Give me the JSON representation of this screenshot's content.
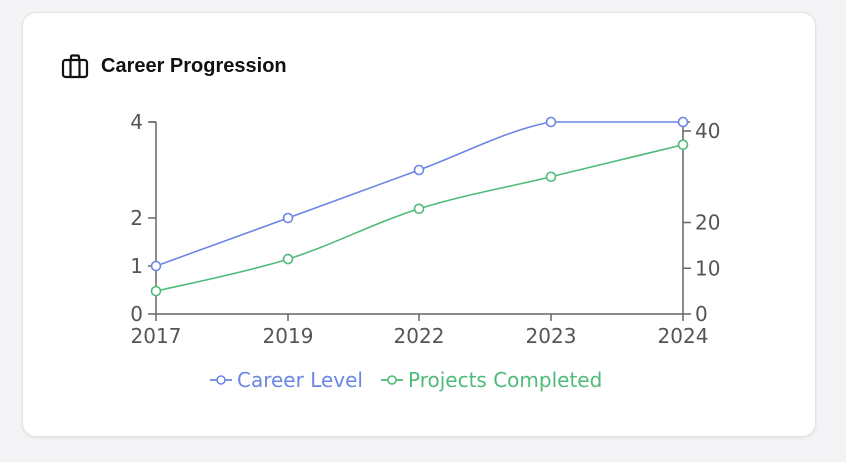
{
  "card": {
    "title": "Career Progression",
    "icon": "briefcase-icon"
  },
  "colors": {
    "career": "#6b86e6",
    "projects": "#4fbb7a",
    "axis": "#666666",
    "tick_text": "#555555"
  },
  "chart_data": {
    "type": "line",
    "title": "",
    "categories": [
      "2017",
      "2019",
      "2022",
      "2023",
      "2024"
    ],
    "y_left": {
      "ticks": [
        0,
        1,
        2,
        4
      ],
      "range": [
        0,
        4
      ]
    },
    "y_right": {
      "ticks": [
        0,
        10,
        20,
        40
      ],
      "range": [
        0,
        40
      ]
    },
    "series": [
      {
        "name": "Career Level",
        "axis": "left",
        "values": [
          1,
          2,
          3,
          4,
          4
        ]
      },
      {
        "name": "Projects Completed",
        "axis": "right",
        "values": [
          5,
          12,
          23,
          30,
          37
        ]
      }
    ],
    "legend": "bottom",
    "grid": false
  }
}
